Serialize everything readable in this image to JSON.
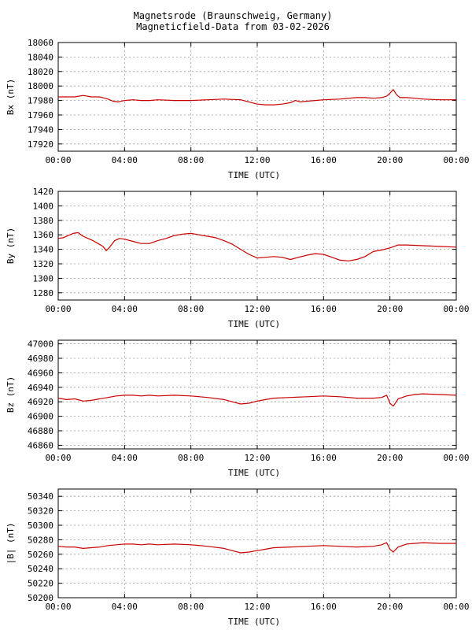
{
  "title": {
    "line1": "Magnetsrode (Braunschweig, Germany)",
    "line2": "Magneticfield-Data from 03-02-2026"
  },
  "colors": {
    "series": "#cc0000",
    "grid": "#9a9a9a",
    "axis": "#000000"
  },
  "chart_data": [
    {
      "type": "line",
      "ylabel": "Bx (nT)",
      "xlabel": "TIME (UTC)",
      "xlim": [
        0,
        24
      ],
      "ylim": [
        17910,
        18060
      ],
      "yticks": [
        17920,
        17940,
        17960,
        17980,
        18000,
        18020,
        18040,
        18060
      ],
      "xticks": [
        "00:00",
        "04:00",
        "08:00",
        "12:00",
        "16:00",
        "20:00",
        "00:00"
      ],
      "grid": true,
      "series": [
        {
          "x": [
            0,
            0.5,
            1,
            1.5,
            2,
            2.5,
            3,
            3.3,
            3.6,
            4,
            4.5,
            5,
            5.5,
            6,
            7,
            8,
            9,
            10,
            11,
            11.5,
            12,
            12.5,
            13,
            13.5,
            14,
            14.3,
            14.6,
            15,
            15.5,
            16,
            17,
            18,
            18.5,
            19,
            19.5,
            19.8,
            20,
            20.2,
            20.4,
            20.6,
            21,
            21.5,
            22,
            23,
            24
          ],
          "y": [
            17985,
            17985,
            17985,
            17987,
            17985,
            17985,
            17982,
            17979,
            17978,
            17980,
            17981,
            17980,
            17980,
            17981,
            17980,
            17980,
            17981,
            17982,
            17981,
            17978,
            17975,
            17974,
            17974,
            17975,
            17977,
            17980,
            17978,
            17979,
            17980,
            17981,
            17982,
            17984,
            17984,
            17983,
            17984,
            17986,
            17990,
            17995,
            17988,
            17984,
            17984,
            17983,
            17982,
            17981,
            17981
          ]
        }
      ]
    },
    {
      "type": "line",
      "ylabel": "By (nT)",
      "xlabel": "TIME (UTC)",
      "xlim": [
        0,
        24
      ],
      "ylim": [
        1270,
        1420
      ],
      "yticks": [
        1280,
        1300,
        1320,
        1340,
        1360,
        1380,
        1400,
        1420
      ],
      "xticks": [
        "00:00",
        "04:00",
        "08:00",
        "12:00",
        "16:00",
        "20:00",
        "00:00"
      ],
      "grid": true,
      "series": [
        {
          "x": [
            0,
            0.3,
            0.6,
            0.9,
            1.2,
            1.5,
            1.8,
            2.1,
            2.4,
            2.7,
            2.9,
            3.1,
            3.4,
            3.7,
            4,
            4.5,
            5,
            5.5,
            6,
            6.5,
            7,
            7.5,
            8,
            8.5,
            9,
            9.5,
            10,
            10.5,
            11,
            11.5,
            12,
            12.5,
            13,
            13.5,
            14,
            14.5,
            15,
            15.5,
            16,
            16.5,
            17,
            17.5,
            18,
            18.5,
            19,
            19.5,
            20,
            20.5,
            21,
            22,
            23,
            24
          ],
          "y": [
            1355,
            1356,
            1359,
            1362,
            1363,
            1358,
            1355,
            1352,
            1348,
            1344,
            1338,
            1343,
            1352,
            1355,
            1354,
            1351,
            1348,
            1348,
            1352,
            1355,
            1359,
            1361,
            1362,
            1360,
            1358,
            1356,
            1352,
            1347,
            1340,
            1333,
            1328,
            1329,
            1330,
            1329,
            1326,
            1329,
            1332,
            1334,
            1333,
            1329,
            1325,
            1324,
            1326,
            1330,
            1337,
            1339,
            1342,
            1346,
            1346,
            1345,
            1344,
            1343
          ]
        }
      ]
    },
    {
      "type": "line",
      "ylabel": "Bz (nT)",
      "xlabel": "TIME (UTC)",
      "xlim": [
        0,
        24
      ],
      "ylim": [
        46855,
        47005
      ],
      "yticks": [
        46860,
        46880,
        46900,
        46920,
        46940,
        46960,
        46980,
        47000
      ],
      "xticks": [
        "00:00",
        "04:00",
        "08:00",
        "12:00",
        "16:00",
        "20:00",
        "00:00"
      ],
      "grid": true,
      "series": [
        {
          "x": [
            0,
            0.5,
            1,
            1.5,
            2,
            2.5,
            3,
            3.5,
            4,
            4.5,
            5,
            5.5,
            6,
            7,
            8,
            9,
            10,
            10.5,
            11,
            11.5,
            12,
            12.5,
            13,
            14,
            15,
            16,
            17,
            18,
            19,
            19.5,
            19.8,
            20,
            20.2,
            20.5,
            21,
            21.5,
            22,
            23,
            24
          ],
          "y": [
            46925,
            46923,
            46924,
            46921,
            46922,
            46924,
            46926,
            46928,
            46929,
            46929,
            46928,
            46929,
            46928,
            46929,
            46928,
            46926,
            46923,
            46920,
            46917,
            46918,
            46921,
            46923,
            46925,
            46926,
            46927,
            46928,
            46927,
            46925,
            46925,
            46926,
            46929,
            46918,
            46914,
            46924,
            46928,
            46930,
            46931,
            46930,
            46929
          ]
        }
      ]
    },
    {
      "type": "line",
      "ylabel": "|B| (nT)",
      "xlabel": "TIME (UTC)",
      "xlim": [
        0,
        24
      ],
      "ylim": [
        50200,
        50350
      ],
      "yticks": [
        50200,
        50220,
        50240,
        50260,
        50280,
        50300,
        50320,
        50340
      ],
      "xticks": [
        "00:00",
        "04:00",
        "08:00",
        "12:00",
        "16:00",
        "20:00",
        "00:00"
      ],
      "grid": true,
      "series": [
        {
          "x": [
            0,
            0.5,
            1,
            1.5,
            2,
            2.5,
            3,
            3.5,
            4,
            4.5,
            5,
            5.5,
            6,
            7,
            8,
            9,
            10,
            10.5,
            11,
            11.5,
            12,
            12.5,
            13,
            14,
            15,
            16,
            17,
            18,
            19,
            19.5,
            19.8,
            20,
            20.2,
            20.5,
            21,
            21.5,
            22,
            23,
            24
          ],
          "y": [
            50271,
            50270,
            50270,
            50268,
            50269,
            50270,
            50272,
            50273,
            50274,
            50274,
            50273,
            50274,
            50273,
            50274,
            50273,
            50271,
            50268,
            50265,
            50262,
            50263,
            50265,
            50267,
            50269,
            50270,
            50271,
            50272,
            50271,
            50270,
            50271,
            50273,
            50276,
            50267,
            50263,
            50270,
            50274,
            50275,
            50276,
            50275,
            50275
          ]
        }
      ]
    }
  ]
}
